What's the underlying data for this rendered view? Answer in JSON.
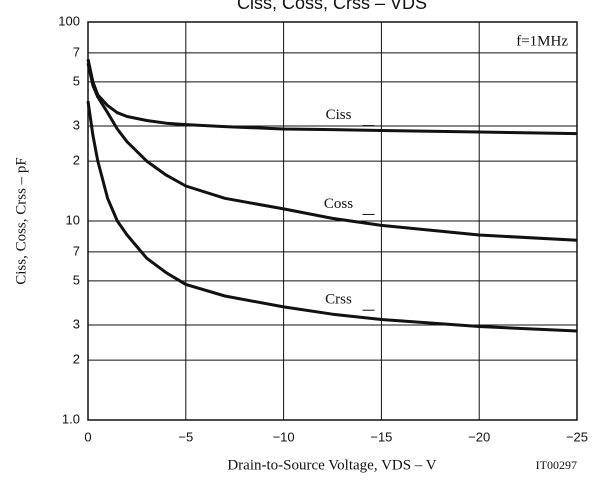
{
  "chart_data": {
    "type": "line",
    "title": "Ciss, Coss, Crss – VDS",
    "x_label": "Drain-to-Source Voltage, VDS – V",
    "y_label": "Ciss, Coss, Crss – pF",
    "annotations": [
      "f=1MHz",
      "IT00297"
    ],
    "x": [
      0,
      -0.25,
      -0.5,
      -1,
      -1.5,
      -2,
      -3,
      -4,
      -5,
      -7,
      -10,
      -12.5,
      -15,
      -20,
      -25
    ],
    "series": [
      {
        "name": "Ciss",
        "color": "#111111",
        "values": [
          65,
          50,
          43,
          38,
          35,
          33.5,
          32,
          31,
          30.5,
          29.8,
          29,
          28.8,
          28.5,
          28,
          27.5
        ]
      },
      {
        "name": "Coss",
        "color": "#111111",
        "values": [
          62,
          48,
          42,
          35,
          29,
          25,
          20,
          17,
          15,
          13,
          11.5,
          10.3,
          9.5,
          8.5,
          8
        ]
      },
      {
        "name": "Crss",
        "color": "#111111",
        "values": [
          40,
          27,
          20,
          13,
          10,
          8.5,
          6.5,
          5.5,
          4.8,
          4.2,
          3.7,
          3.4,
          3.2,
          2.95,
          2.8
        ]
      }
    ],
    "xlim": [
      0,
      -25
    ],
    "xticks": [
      0,
      {
        "value": -5,
        "label": "−5"
      },
      {
        "value": -10,
        "label": "−10"
      },
      {
        "value": -15,
        "label": "−15"
      },
      {
        "value": -20,
        "label": "−20"
      },
      {
        "value": -25,
        "label": "−25"
      }
    ],
    "ylim": [
      1,
      100
    ],
    "yticks": [
      {
        "value": 1,
        "label": "1.0"
      },
      2,
      3,
      5,
      7,
      10,
      {
        "value": 20,
        "label": "2"
      },
      {
        "value": 30,
        "label": "3"
      },
      {
        "value": 50,
        "label": "5"
      },
      {
        "value": 70,
        "label": "7"
      },
      100
    ],
    "log_y": true,
    "grid": true
  }
}
